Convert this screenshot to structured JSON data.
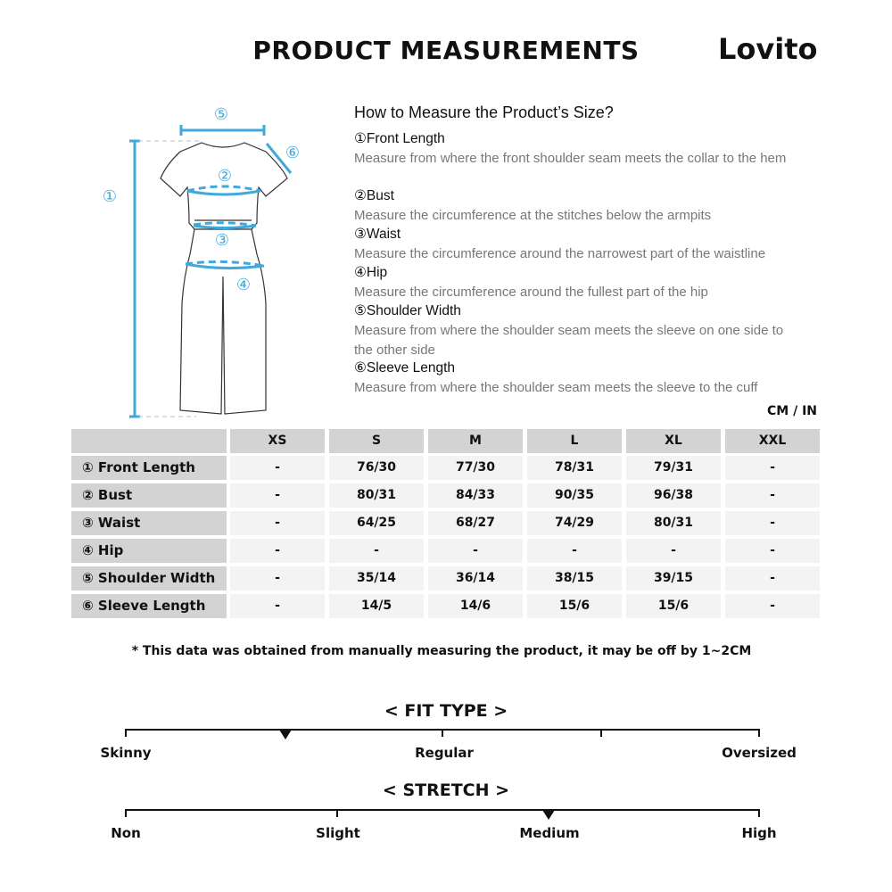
{
  "header": {
    "title": "PRODUCT MEASUREMENTS",
    "logo": "Lovito"
  },
  "guide": {
    "title": "How to Measure the Product’s Size?",
    "steps": [
      {
        "label": "①Front Length",
        "desc": "Measure from where the front shoulder seam meets the collar to the hem"
      },
      {
        "label": "②Bust",
        "desc": "Measure the circumference at the stitches below the armpits"
      },
      {
        "label": "③Waist",
        "desc": "Measure the circumference around the narrowest part of the waistline"
      },
      {
        "label": "④Hip",
        "desc": "Measure the circumference around the fullest part of the hip"
      },
      {
        "label": "⑤Shoulder Width",
        "desc": "Measure from where the shoulder seam meets the sleeve on one side to the other side"
      },
      {
        "label": "⑥Sleeve Length",
        "desc": "Measure from where the shoulder seam meets the sleeve to the cuff"
      }
    ],
    "diagram_markers": [
      "①",
      "②",
      "③",
      "④",
      "⑤",
      "⑥"
    ],
    "accent_color": "#3fa9dc"
  },
  "table": {
    "unit": "CM / IN",
    "columns": [
      "XS",
      "S",
      "M",
      "L",
      "XL",
      "XXL"
    ],
    "rows": [
      {
        "label": "① Front Length",
        "values": [
          "-",
          "76/30",
          "77/30",
          "78/31",
          "79/31",
          "-"
        ]
      },
      {
        "label": "② Bust",
        "values": [
          "-",
          "80/31",
          "84/33",
          "90/35",
          "96/38",
          "-"
        ]
      },
      {
        "label": "③ Waist",
        "values": [
          "-",
          "64/25",
          "68/27",
          "74/29",
          "80/31",
          "-"
        ]
      },
      {
        "label": "④ Hip",
        "values": [
          "-",
          "-",
          "-",
          "-",
          "-",
          "-"
        ]
      },
      {
        "label": "⑤ Shoulder Width",
        "values": [
          "-",
          "35/14",
          "36/14",
          "38/15",
          "39/15",
          "-"
        ]
      },
      {
        "label": "⑥ Sleeve Length",
        "values": [
          "-",
          "14/5",
          "14/6",
          "15/6",
          "15/6",
          "-"
        ]
      }
    ],
    "note": "* This data was obtained from manually measuring the product, it may be off by 1~2CM"
  },
  "fit_type": {
    "title": "< FIT TYPE >",
    "labels": [
      "Skinny",
      "Regular",
      "Oversized"
    ],
    "level": 0.25
  },
  "stretch": {
    "title": "< STRETCH >",
    "labels": [
      "Non",
      "Slight",
      "Medium",
      "High"
    ],
    "level": 0.6667
  }
}
